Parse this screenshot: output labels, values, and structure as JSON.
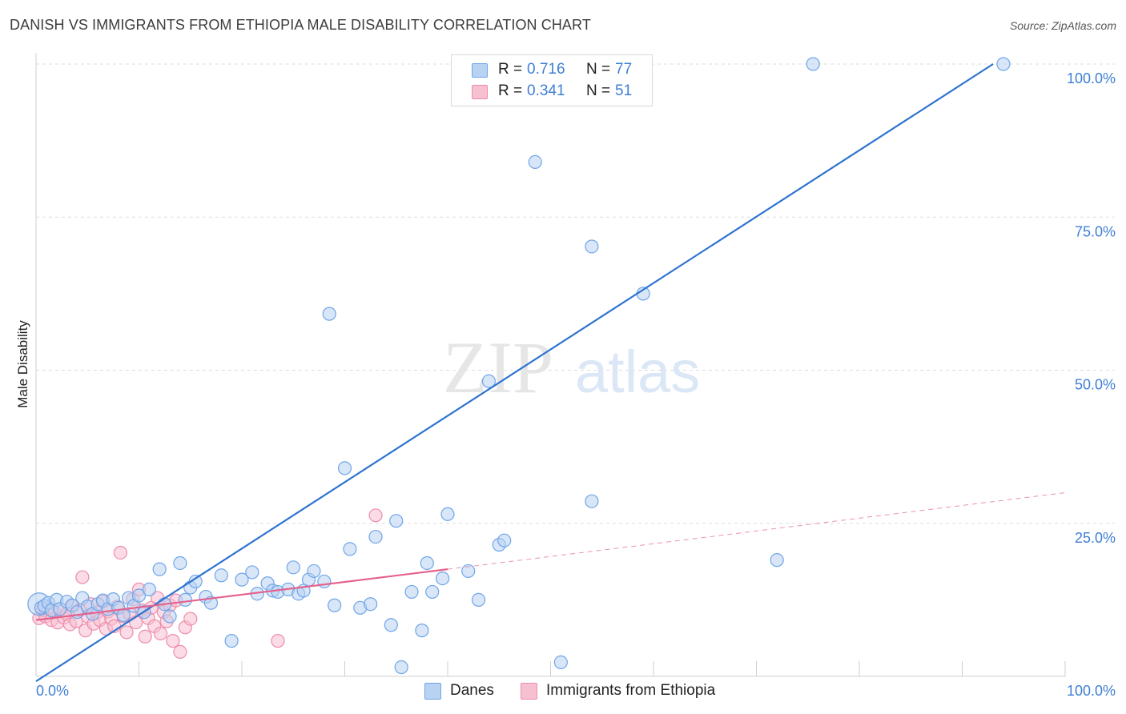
{
  "title": "DANISH VS IMMIGRANTS FROM ETHIOPIA MALE DISABILITY CORRELATION CHART",
  "source": "Source: ZipAtlas.com",
  "watermark": {
    "zip": "ZIP",
    "atlas": "atlas"
  },
  "legend": {
    "rows": [
      {
        "r_label": "R =",
        "r_value": "0.716",
        "n_label": "N =",
        "n_value": "77",
        "color": "#6fa6e8"
      },
      {
        "r_label": "R =",
        "r_value": "0.341",
        "n_label": "N =",
        "n_value": "51",
        "color": "#f08cab"
      }
    ]
  },
  "bottom_legend": {
    "series1": "Danes",
    "series2": "Immigrants from Ethiopia"
  },
  "colors": {
    "danes_fill": "#b8d2f2",
    "danes_stroke": "#6fa6e8",
    "danes_line": "#2e74d0",
    "eth_fill": "#f7c0d1",
    "eth_stroke": "#ee8cab",
    "eth_line": "#e4628d",
    "grid": "#dddddd",
    "tick_text": "#3f7fd4"
  },
  "chart_data": {
    "type": "scatter",
    "title": "DANISH VS IMMIGRANTS FROM ETHIOPIA MALE DISABILITY CORRELATION CHART",
    "xlabel": "",
    "ylabel": "Male Disability",
    "xlim": [
      0,
      100
    ],
    "ylim": [
      0,
      100
    ],
    "x_tick_labels": [
      "0.0%",
      "100.0%"
    ],
    "y_tick_labels": [
      "25.0%",
      "50.0%",
      "75.0%",
      "100.0%"
    ],
    "y_tick_values": [
      25,
      50,
      75,
      100
    ],
    "grid": true,
    "series": [
      {
        "name": "Danes",
        "r": 0.716,
        "n": 77,
        "trend": {
          "x": [
            0,
            93
          ],
          "y": [
            -0.8,
            100
          ]
        },
        "points": [
          [
            0.3,
            11.8
          ],
          [
            0.5,
            11.2
          ],
          [
            0.8,
            11.5
          ],
          [
            1.2,
            12.0
          ],
          [
            1.5,
            10.8
          ],
          [
            2.0,
            12.5
          ],
          [
            2.3,
            11.0
          ],
          [
            3.0,
            12.2
          ],
          [
            3.5,
            11.6
          ],
          [
            4.0,
            10.5
          ],
          [
            4.5,
            12.8
          ],
          [
            5.0,
            11.4
          ],
          [
            5.5,
            10.2
          ],
          [
            6.0,
            11.8
          ],
          [
            6.5,
            12.4
          ],
          [
            7.0,
            11.0
          ],
          [
            7.5,
            12.6
          ],
          [
            8.0,
            11.2
          ],
          [
            8.5,
            10.0
          ],
          [
            9.0,
            12.8
          ],
          [
            9.5,
            11.5
          ],
          [
            10.0,
            13.2
          ],
          [
            10.5,
            10.5
          ],
          [
            11.0,
            14.2
          ],
          [
            12.0,
            17.5
          ],
          [
            12.5,
            11.8
          ],
          [
            13.0,
            9.8
          ],
          [
            14.0,
            18.5
          ],
          [
            14.5,
            12.5
          ],
          [
            15.0,
            14.5
          ],
          [
            15.5,
            15.5
          ],
          [
            16.5,
            13.0
          ],
          [
            17.0,
            12.0
          ],
          [
            18.0,
            16.5
          ],
          [
            19.0,
            5.8
          ],
          [
            20.0,
            15.8
          ],
          [
            21.0,
            17.0
          ],
          [
            21.5,
            13.5
          ],
          [
            22.5,
            15.2
          ],
          [
            23.0,
            14.0
          ],
          [
            23.5,
            13.8
          ],
          [
            24.5,
            14.2
          ],
          [
            25.0,
            17.8
          ],
          [
            25.5,
            13.5
          ],
          [
            26.0,
            14.0
          ],
          [
            26.5,
            15.8
          ],
          [
            27.0,
            17.2
          ],
          [
            28.0,
            15.5
          ],
          [
            28.5,
            59.2
          ],
          [
            29.0,
            11.6
          ],
          [
            30.0,
            34.0
          ],
          [
            30.5,
            20.8
          ],
          [
            31.5,
            11.2
          ],
          [
            32.5,
            11.8
          ],
          [
            33.0,
            22.8
          ],
          [
            34.5,
            8.4
          ],
          [
            35.0,
            25.4
          ],
          [
            35.5,
            1.5
          ],
          [
            36.5,
            13.8
          ],
          [
            37.5,
            7.5
          ],
          [
            38.0,
            18.5
          ],
          [
            38.5,
            13.8
          ],
          [
            39.5,
            16.0
          ],
          [
            40.0,
            26.5
          ],
          [
            42.0,
            17.2
          ],
          [
            43.0,
            12.5
          ],
          [
            44.0,
            48.2
          ],
          [
            45.0,
            21.5
          ],
          [
            45.5,
            22.2
          ],
          [
            48.5,
            84.0
          ],
          [
            51.0,
            2.3
          ],
          [
            54.0,
            70.2
          ],
          [
            54.0,
            28.6
          ],
          [
            59.0,
            62.5
          ],
          [
            72.0,
            19.0
          ],
          [
            75.5,
            100.0
          ],
          [
            94.0,
            100.0
          ]
        ]
      },
      {
        "name": "Immigrants from Ethiopia",
        "r": 0.341,
        "n": 51,
        "trend": {
          "x": [
            0,
            40
          ],
          "y": [
            9.2,
            17.5
          ]
        },
        "trend_dashed": {
          "x": [
            40,
            100
          ],
          "y": [
            17.5,
            30.0
          ]
        },
        "points": [
          [
            0.3,
            9.5
          ],
          [
            0.6,
            10.8
          ],
          [
            0.9,
            9.8
          ],
          [
            1.2,
            11.2
          ],
          [
            1.5,
            9.2
          ],
          [
            1.8,
            10.5
          ],
          [
            2.1,
            8.8
          ],
          [
            2.4,
            11.0
          ],
          [
            2.7,
            9.6
          ],
          [
            3.0,
            10.2
          ],
          [
            3.3,
            8.5
          ],
          [
            3.6,
            11.5
          ],
          [
            3.9,
            9.0
          ],
          [
            4.2,
            10.8
          ],
          [
            4.5,
            16.2
          ],
          [
            4.8,
            7.5
          ],
          [
            5.0,
            9.8
          ],
          [
            5.3,
            11.8
          ],
          [
            5.6,
            8.6
          ],
          [
            5.9,
            10.4
          ],
          [
            6.2,
            9.2
          ],
          [
            6.5,
            12.2
          ],
          [
            6.8,
            7.8
          ],
          [
            7.0,
            10.6
          ],
          [
            7.3,
            9.4
          ],
          [
            7.6,
            8.2
          ],
          [
            7.9,
            11.4
          ],
          [
            8.2,
            20.2
          ],
          [
            8.5,
            9.8
          ],
          [
            8.8,
            7.2
          ],
          [
            9.1,
            10.2
          ],
          [
            9.4,
            12.6
          ],
          [
            9.7,
            8.8
          ],
          [
            10.0,
            14.2
          ],
          [
            10.3,
            10.8
          ],
          [
            10.6,
            6.5
          ],
          [
            10.9,
            9.5
          ],
          [
            11.2,
            11.2
          ],
          [
            11.5,
            8.2
          ],
          [
            11.8,
            12.8
          ],
          [
            12.1,
            7.0
          ],
          [
            12.4,
            10.5
          ],
          [
            12.7,
            9.0
          ],
          [
            13.0,
            11.6
          ],
          [
            13.3,
            5.8
          ],
          [
            13.6,
            12.4
          ],
          [
            14.0,
            4.0
          ],
          [
            14.5,
            8.0
          ],
          [
            15.0,
            9.4
          ],
          [
            23.5,
            5.8
          ],
          [
            33.0,
            26.3
          ]
        ]
      }
    ]
  }
}
